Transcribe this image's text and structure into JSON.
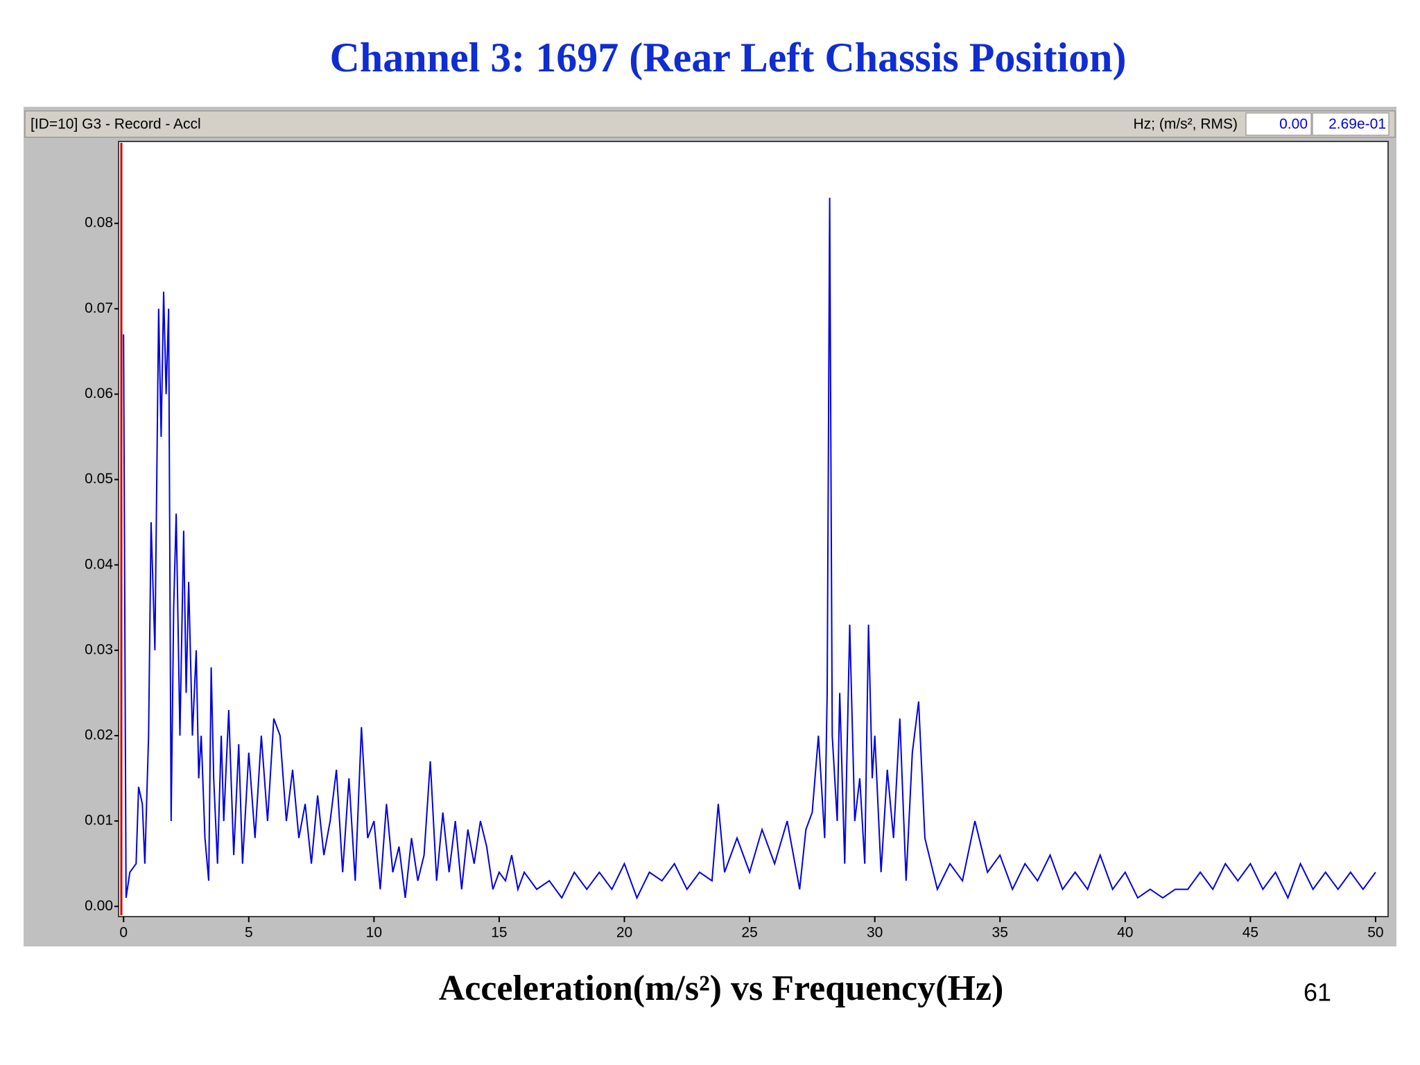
{
  "title": "Channel 3: 1697 (Rear Left Chassis Position)",
  "header": {
    "label": "[ID=10] G3  - Record - Accl",
    "units": "Hz; (m/s², RMS)",
    "fields": [
      "0.00",
      "2.69e-01"
    ]
  },
  "caption": "Acceleration(m/s²) vs Frequency(Hz)",
  "page_number": "61",
  "chart_data": {
    "type": "line",
    "x": [
      0,
      0.1,
      0.25,
      0.5,
      0.6,
      0.75,
      0.85,
      1.0,
      1.1,
      1.25,
      1.4,
      1.5,
      1.6,
      1.7,
      1.8,
      1.9,
      2.0,
      2.1,
      2.25,
      2.4,
      2.5,
      2.6,
      2.75,
      2.9,
      3.0,
      3.1,
      3.25,
      3.4,
      3.5,
      3.6,
      3.75,
      3.9,
      4.0,
      4.2,
      4.4,
      4.6,
      4.75,
      5.0,
      5.25,
      5.5,
      5.75,
      6.0,
      6.25,
      6.5,
      6.75,
      7.0,
      7.25,
      7.5,
      7.75,
      8.0,
      8.25,
      8.5,
      8.75,
      9.0,
      9.25,
      9.5,
      9.75,
      10.0,
      10.25,
      10.5,
      10.75,
      11.0,
      11.25,
      11.5,
      11.75,
      12.0,
      12.25,
      12.5,
      12.75,
      13.0,
      13.25,
      13.5,
      13.75,
      14.0,
      14.25,
      14.5,
      14.75,
      15.0,
      15.25,
      15.5,
      15.75,
      16.0,
      16.5,
      17.0,
      17.5,
      18.0,
      18.5,
      19.0,
      19.5,
      20.0,
      20.5,
      21.0,
      21.5,
      22.0,
      22.5,
      23.0,
      23.5,
      23.75,
      24.0,
      24.5,
      25.0,
      25.5,
      26.0,
      26.5,
      27.0,
      27.25,
      27.5,
      27.75,
      28.0,
      28.1,
      28.2,
      28.3,
      28.5,
      28.6,
      28.8,
      29.0,
      29.2,
      29.4,
      29.6,
      29.75,
      29.9,
      30.0,
      30.25,
      30.5,
      30.75,
      31.0,
      31.25,
      31.5,
      31.75,
      32.0,
      32.25,
      32.5,
      33.0,
      33.5,
      34.0,
      34.5,
      35.0,
      35.5,
      36.0,
      36.5,
      37.0,
      37.5,
      38.0,
      38.5,
      39.0,
      39.5,
      40.0,
      40.5,
      41.0,
      41.5,
      42.0,
      42.5,
      43.0,
      43.5,
      44.0,
      44.5,
      45.0,
      45.5,
      46.0,
      46.5,
      47.0,
      47.5,
      48.0,
      48.5,
      49.0,
      49.5,
      50.0
    ],
    "series": [
      {
        "color": "#0000e0",
        "values": [
          0.067,
          0.001,
          0.004,
          0.005,
          0.014,
          0.012,
          0.005,
          0.02,
          0.045,
          0.03,
          0.07,
          0.055,
          0.072,
          0.06,
          0.07,
          0.01,
          0.035,
          0.046,
          0.02,
          0.044,
          0.025,
          0.038,
          0.02,
          0.03,
          0.015,
          0.02,
          0.008,
          0.003,
          0.028,
          0.015,
          0.005,
          0.02,
          0.01,
          0.023,
          0.006,
          0.019,
          0.005,
          0.018,
          0.008,
          0.02,
          0.01,
          0.022,
          0.02,
          0.01,
          0.016,
          0.008,
          0.012,
          0.005,
          0.013,
          0.006,
          0.01,
          0.016,
          0.004,
          0.015,
          0.003,
          0.021,
          0.008,
          0.01,
          0.002,
          0.012,
          0.004,
          0.007,
          0.001,
          0.008,
          0.003,
          0.006,
          0.017,
          0.003,
          0.011,
          0.004,
          0.01,
          0.002,
          0.009,
          0.005,
          0.01,
          0.007,
          0.002,
          0.004,
          0.003,
          0.006,
          0.002,
          0.004,
          0.002,
          0.003,
          0.001,
          0.004,
          0.002,
          0.004,
          0.002,
          0.005,
          0.001,
          0.004,
          0.003,
          0.005,
          0.002,
          0.004,
          0.003,
          0.012,
          0.004,
          0.008,
          0.004,
          0.009,
          0.005,
          0.01,
          0.002,
          0.009,
          0.011,
          0.02,
          0.008,
          0.025,
          0.083,
          0.02,
          0.01,
          0.025,
          0.005,
          0.033,
          0.01,
          0.015,
          0.005,
          0.033,
          0.015,
          0.02,
          0.004,
          0.016,
          0.008,
          0.022,
          0.003,
          0.018,
          0.024,
          0.008,
          0.005,
          0.002,
          0.005,
          0.003,
          0.01,
          0.004,
          0.006,
          0.002,
          0.005,
          0.003,
          0.006,
          0.002,
          0.004,
          0.002,
          0.006,
          0.002,
          0.004,
          0.001,
          0.002,
          0.001,
          0.002,
          0.002,
          0.004,
          0.002,
          0.005,
          0.003,
          0.005,
          0.002,
          0.004,
          0.001,
          0.005,
          0.002,
          0.004,
          0.002,
          0.004,
          0.002,
          0.004
        ]
      }
    ],
    "xlim": [
      -0.2,
      50.5
    ],
    "xticks": [
      0,
      5,
      10,
      15,
      20,
      25,
      30,
      35,
      40,
      45,
      50
    ],
    "ylim": [
      -0.0012,
      0.0896
    ],
    "yticks": [
      {
        "value": 0,
        "label": "0.00"
      },
      0.01,
      0.02,
      0.03,
      0.04,
      0.05,
      0.06,
      0.07,
      0.08
    ]
  }
}
